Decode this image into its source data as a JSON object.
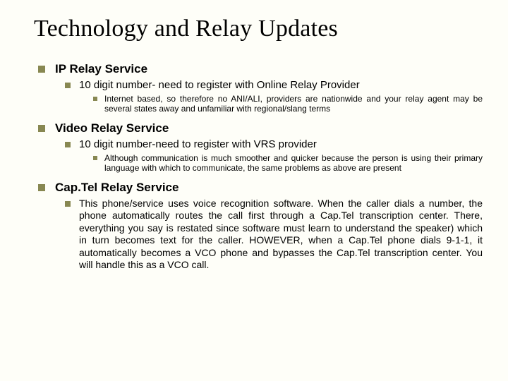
{
  "title": "Technology and Relay Updates",
  "sections": [
    {
      "label": "IP Relay Service",
      "sub": {
        "label": "10 digit number- need to register with Online Relay Provider",
        "detail": "Internet based, so therefore no ANI/ALI, providers are nationwide and your relay agent may be several states away and unfamiliar with regional/slang terms"
      }
    },
    {
      "label": "Video Relay Service",
      "sub": {
        "label": "10 digit number-need to register with VRS provider",
        "detail": "Although communication is much smoother and quicker because the person is using their primary language with which to communicate, the same problems as above are present"
      }
    },
    {
      "label": "Cap.Tel Relay Service",
      "sub": {
        "detail": "This phone/service uses voice recognition software.  When the caller dials a number, the phone automatically routes the call first through a Cap.Tel transcription center.  There, everything you say is restated since software must learn to understand the speaker) which in turn becomes text for the caller.  HOWEVER, when a Cap.Tel phone dials 9-1-1, it automatically becomes a VCO phone and bypasses the Cap.Tel transcription center.  You  will handle this as a VCO call."
      }
    }
  ],
  "style": {
    "title_fontsize": 34,
    "lvl1_fontsize": 17,
    "lvl2_fontsize": 15,
    "lvl3_fontsize": 12,
    "lvl3_last_fontsize": 14,
    "bullet_color": "#888852",
    "background_color": "#fefef8",
    "text_color": "#000000"
  }
}
